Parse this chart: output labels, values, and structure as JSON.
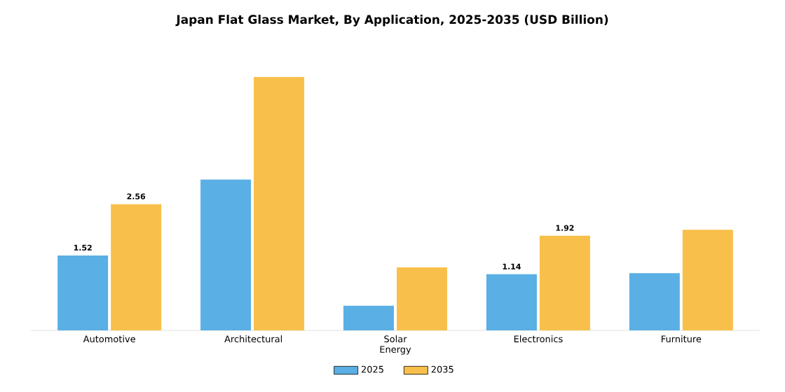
{
  "chart_data": {
    "type": "bar",
    "title": "Japan Flat Glass Market, By Application, 2025-2035 (USD Billion)",
    "categories": [
      "Automotive",
      "Architectural",
      "Solar Energy",
      "Electronics",
      "Furniture"
    ],
    "series": [
      {
        "name": "2025",
        "color": "#5aafe4",
        "values": [
          1.52,
          3.06,
          0.5,
          1.14,
          1.16
        ],
        "value_labels": [
          "1.52",
          null,
          null,
          "1.14",
          null
        ]
      },
      {
        "name": "2035",
        "color": "#f8c04a",
        "values": [
          2.56,
          5.14,
          1.28,
          1.92,
          2.04
        ],
        "value_labels": [
          "2.56",
          null,
          null,
          "1.92",
          null
        ]
      }
    ],
    "legend": "bottom"
  }
}
